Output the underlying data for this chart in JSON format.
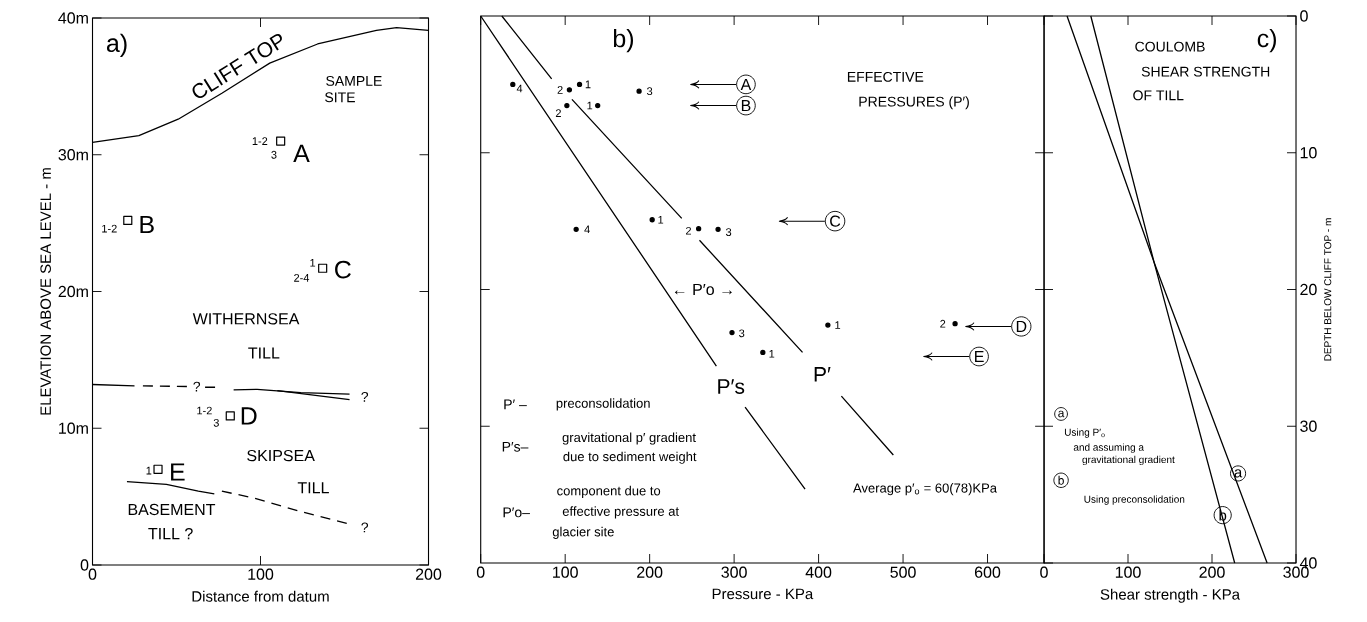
{
  "chart_data": [
    {
      "type": "line",
      "xlabel": "Distance from datum",
      "ylabel": "ELEVATION ABOVE SEA LEVEL - m",
      "xlim": [
        0,
        200
      ],
      "ylim": [
        0,
        40
      ],
      "xticks": [
        0,
        100,
        200
      ],
      "yticks": [
        0,
        {
          "value": 10,
          "label": "10m"
        },
        {
          "value": 20,
          "label": "20m"
        },
        {
          "value": 30,
          "label": "30m"
        },
        {
          "value": 40,
          "label": "40m"
        }
      ],
      "series": [
        {
          "name": "CLIFF TOP",
          "color": "#000000",
          "x": [
            0,
            27.6,
            51,
            77,
            105.5,
            134,
            169,
            181,
            200
          ],
          "values": [
            30.9,
            31.4,
            32.6,
            34.5,
            36.7,
            38.1,
            39.1,
            39.3,
            39.1
          ]
        },
        {
          "color": "#000000",
          "x": [
            0,
            25
          ],
          "values": [
            13.2,
            13.1
          ]
        },
        {
          "line_style": "dashed",
          "color": "#000000",
          "x": [
            30,
            57,
            null,
            67,
            74
          ],
          "values": [
            13.1,
            13.05,
            null,
            13.0,
            13.0
          ]
        },
        {
          "color": "#000000",
          "x": [
            84,
            98,
            124,
            153
          ],
          "values": [
            12.8,
            12.85,
            12.6,
            12.5
          ]
        },
        {
          "color": "#000000",
          "x": [
            110,
            153
          ],
          "values": [
            12.75,
            12.1
          ]
        },
        {
          "color": "#000000",
          "x": [
            20.5,
            44,
            63,
            72.5
          ],
          "values": [
            6.1,
            5.9,
            5.4,
            5.2
          ]
        },
        {
          "line_style": "dashed",
          "color": "#000000",
          "x": [
            77,
            96,
            124,
            153
          ],
          "values": [
            5.4,
            4.9,
            3.9,
            3.0
          ]
        },
        {
          "type": "scatter",
          "marker": "square",
          "color": "#000000",
          "x": [
            112,
            21,
            137,
            82,
            39
          ],
          "values": [
            31,
            25.2,
            21.7,
            10.9,
            7
          ]
        }
      ],
      "annotations": [
        "a)",
        "SAMPLE",
        "SITE",
        "A",
        "1-2",
        "3",
        "B",
        "1-2",
        "C",
        "1",
        "2-4",
        "WITHERNSEA",
        "TILL",
        "?",
        "?",
        "D",
        "1-2",
        "3",
        "SKIPSEA",
        "TILL",
        "E",
        "1",
        "BASEMENT",
        "TILL ?",
        "?"
      ]
    },
    {
      "type": "scatter",
      "xlabel": "Pressure - KPa",
      "xlim": [
        0,
        667
      ],
      "ylim": [
        40,
        0
      ],
      "xticks": [
        0,
        100,
        200,
        300,
        400,
        500,
        600
      ],
      "yticks": [
        {
          "value": 10,
          "label": null
        },
        {
          "value": 20,
          "label": null
        },
        {
          "value": 30,
          "label": null
        }
      ],
      "tick_labels": "x",
      "series": [
        {
          "name": "P′s",
          "type": "line",
          "color": "#000000",
          "x": [
            0,
            279,
            null,
            313,
            384
          ],
          "values": [
            0,
            25.6,
            null,
            28.6,
            34.6
          ]
        },
        {
          "name": "P′",
          "type": "line",
          "color": "#000000",
          "x": [
            25,
            84,
            null,
            108,
            238,
            null,
            259,
            381,
            null,
            427,
            488.5
          ],
          "values": [
            0,
            4.6,
            null,
            6.1,
            14.8,
            null,
            16.4,
            24.6,
            null,
            27.8,
            32.1
          ]
        },
        {
          "marker": "circle",
          "color": "#000000",
          "x": [
            38,
            105,
            117,
            187.5,
            102,
            138.5,
            113,
            203,
            258,
            281,
            297.5,
            334,
            411,
            561.6
          ],
          "values": [
            5.0,
            5.4,
            5.0,
            5.5,
            6.55,
            6.55,
            15.6,
            14.9,
            15.55,
            15.6,
            23.15,
            24.6,
            22.6,
            22.5
          ]
        }
      ],
      "annotations": [
        "b)",
        "EFFECTIVE",
        "PRESSURES (P′)",
        {
          "text": "A",
          "x": 314,
          "y": 5.0
        },
        {
          "text": "B",
          "x": 314,
          "y": 6.55
        },
        {
          "text": "C",
          "x": 419.5,
          "y": 15.0
        },
        {
          "text": "D",
          "x": 640,
          "y": 22.7
        },
        {
          "text": "E",
          "x": 590,
          "y": 24.9
        },
        "← P′o →",
        "P′ –",
        "preconsolidation",
        "P′s–",
        "gravitational p′ gradient",
        "due to sediment weight",
        "component due to",
        "P′o–",
        "effective pressure at",
        "glacier site",
        "Average p′$_{o}$ = 60(78)KPa",
        "4",
        "2",
        "1",
        "3",
        "2",
        "1",
        "4",
        "1",
        "2",
        "3",
        "3",
        "1",
        "1",
        "2"
      ]
    },
    {
      "type": "line",
      "xlabel": "Shear strength - KPa",
      "ylabel": "DEPTH BELOW CLIFF TOP - m",
      "xlim": [
        0,
        300
      ],
      "ylim": [
        40,
        0
      ],
      "xticks": [
        0,
        100,
        200,
        300
      ],
      "yticks": [
        0,
        10,
        20,
        30,
        40
      ],
      "series": [
        {
          "color": "#000000",
          "x": [
            55.7,
            131,
            265.6
          ],
          "values": [
            0,
            18,
            40
          ]
        },
        {
          "color": "#000000",
          "x": [
            27.4,
            131,
            227
          ],
          "values": [
            0,
            18,
            40
          ]
        }
      ],
      "annotations": [
        "c)",
        "COULOMB",
        "SHEAR STRENGTH",
        "OF TILL",
        {
          "text": "a",
          "x": 20.3,
          "y": 29.1
        },
        "Using P′$_{o}$",
        "and assuming a",
        "gravitational gradient",
        {
          "text": "b",
          "x": 20.3,
          "y": 33.95
        },
        "Using preconsolidation",
        {
          "text": "a",
          "x": 231,
          "y": 33.45
        },
        {
          "text": "b",
          "x": 212.7,
          "y": 36.5
        }
      ]
    }
  ]
}
